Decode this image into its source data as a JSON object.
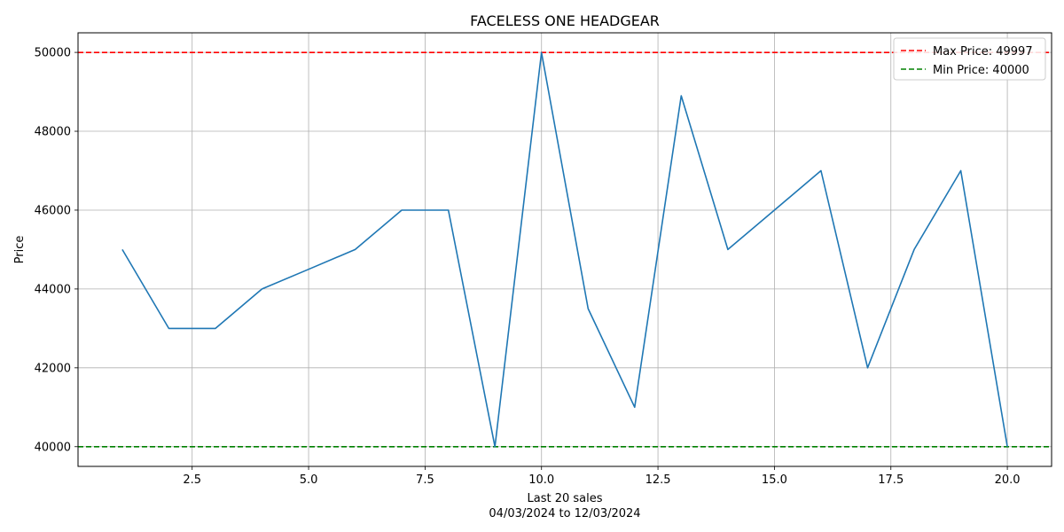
{
  "chart_data": {
    "type": "line",
    "title": "FACELESS ONE HEADGEAR",
    "xlabel": "Last 20 sales",
    "xlabel_sub": "04/03/2024 to 12/03/2024",
    "ylabel": "Price",
    "x": [
      1,
      2,
      3,
      4,
      5,
      6,
      7,
      8,
      9,
      10,
      11,
      12,
      13,
      14,
      15,
      16,
      17,
      18,
      19,
      20
    ],
    "series": [
      {
        "values": [
          45000,
          43000,
          43000,
          44000,
          44500,
          45000,
          46000,
          46000,
          40000,
          49997,
          43500,
          41000,
          48900,
          45000,
          46000,
          47000,
          42000,
          45000,
          47000,
          40000
        ],
        "color": "#1f77b4"
      }
    ],
    "xlim": [
      0.05,
      20.95
    ],
    "ylim": [
      39500,
      50497
    ],
    "xticks": [
      2.5,
      5.0,
      7.5,
      10.0,
      12.5,
      15.0,
      17.5,
      20.0
    ],
    "xtick_labels": [
      "2.5",
      "5.0",
      "7.5",
      "10.0",
      "12.5",
      "15.0",
      "17.5",
      "20.0"
    ],
    "yticks": [
      40000,
      42000,
      44000,
      46000,
      48000,
      50000
    ],
    "ytick_labels": [
      "40000",
      "42000",
      "44000",
      "46000",
      "48000",
      "50000"
    ],
    "hlines": [
      {
        "name": "Max Price: 49997",
        "value": 49997,
        "color": "#ff0000",
        "style": "dashed"
      },
      {
        "name": "Min Price: 40000",
        "value": 40000,
        "color": "#008000",
        "style": "dashed"
      }
    ],
    "grid": true,
    "legend_position": "top-right"
  }
}
